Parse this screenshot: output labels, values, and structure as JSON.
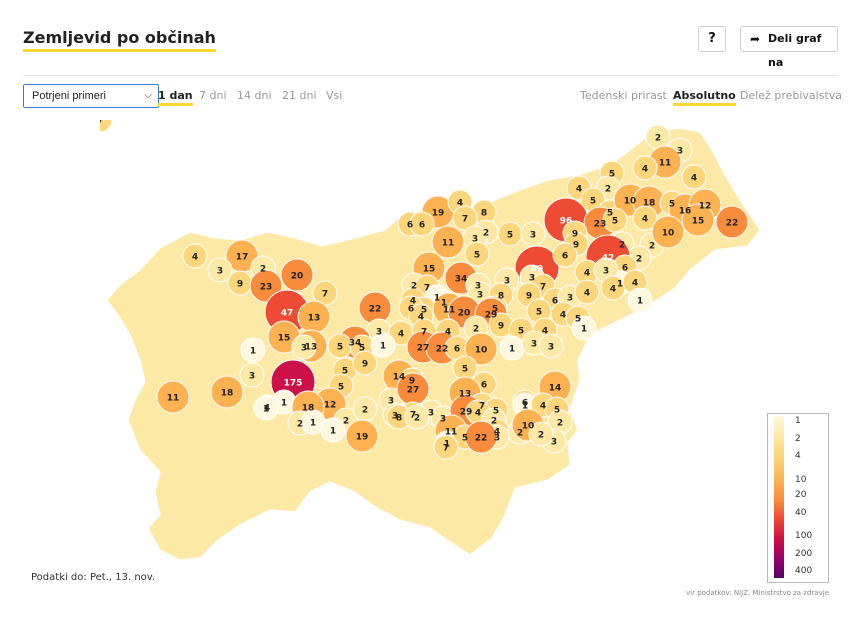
{
  "header": {
    "title": "Zemljevid po občinah",
    "help_label": "?",
    "share_label": "Deli graf na"
  },
  "controls": {
    "metric_select": {
      "selected": "Potrjeni primeri"
    },
    "ranges": [
      {
        "label": "1 dan",
        "active": true
      },
      {
        "label": "7 dni",
        "active": false
      },
      {
        "label": "14 dni",
        "active": false
      },
      {
        "label": "21 dni",
        "active": false
      },
      {
        "label": "Vsi",
        "active": false
      }
    ],
    "modes": [
      {
        "label": "Tedenski prirast",
        "active": false
      },
      {
        "label": "Absolutno",
        "active": true
      },
      {
        "label": "Delež prebivalstva",
        "active": false
      }
    ]
  },
  "map": {
    "municipality_values": [
      {
        "v": "2"
      },
      {
        "v": "3"
      },
      {
        "v": "11"
      },
      {
        "v": "4"
      },
      {
        "v": "4"
      },
      {
        "v": "5"
      },
      {
        "v": "4"
      },
      {
        "v": "2"
      },
      {
        "v": "5"
      },
      {
        "v": "5"
      },
      {
        "v": "10"
      },
      {
        "v": "18"
      },
      {
        "v": "5"
      },
      {
        "v": "96"
      },
      {
        "v": "23"
      },
      {
        "v": "5"
      },
      {
        "v": "4"
      },
      {
        "v": "16"
      },
      {
        "v": "12"
      },
      {
        "v": "15"
      },
      {
        "v": "22"
      },
      {
        "v": "19"
      },
      {
        "v": "4"
      },
      {
        "v": "8"
      },
      {
        "v": "6"
      },
      {
        "v": "6"
      },
      {
        "v": "7"
      },
      {
        "v": "2"
      },
      {
        "v": "3"
      },
      {
        "v": "5"
      },
      {
        "v": "3"
      },
      {
        "v": "9"
      },
      {
        "v": "2"
      },
      {
        "v": "10"
      },
      {
        "v": "11"
      },
      {
        "v": "2"
      },
      {
        "v": "2"
      },
      {
        "v": "9"
      },
      {
        "v": "4"
      },
      {
        "v": "17"
      },
      {
        "v": "2"
      },
      {
        "v": "20"
      },
      {
        "v": "3"
      },
      {
        "v": "9"
      },
      {
        "v": "23"
      },
      {
        "v": "5"
      },
      {
        "v": "49"
      },
      {
        "v": "6"
      },
      {
        "v": "42"
      },
      {
        "v": "6"
      },
      {
        "v": "1"
      },
      {
        "v": "15"
      },
      {
        "v": "34"
      },
      {
        "v": "3"
      },
      {
        "v": "3"
      },
      {
        "v": "2"
      },
      {
        "v": "7"
      },
      {
        "v": "1"
      },
      {
        "v": "4"
      },
      {
        "v": "1"
      },
      {
        "v": "3"
      },
      {
        "v": "4"
      },
      {
        "v": "3"
      },
      {
        "v": "7"
      },
      {
        "v": "9"
      },
      {
        "v": "6"
      },
      {
        "v": "3"
      },
      {
        "v": "4"
      },
      {
        "v": "4"
      },
      {
        "v": "4"
      },
      {
        "v": "1"
      },
      {
        "v": "3"
      },
      {
        "v": "8"
      },
      {
        "v": "7"
      },
      {
        "v": "5"
      },
      {
        "v": "11"
      },
      {
        "v": "5"
      },
      {
        "v": "47"
      },
      {
        "v": "13"
      },
      {
        "v": "22"
      },
      {
        "v": "6"
      },
      {
        "v": "4"
      },
      {
        "v": "20"
      },
      {
        "v": "29"
      },
      {
        "v": "5"
      },
      {
        "v": "4"
      },
      {
        "v": "5"
      },
      {
        "v": "1"
      },
      {
        "v": "3"
      },
      {
        "v": "4"
      },
      {
        "v": "7"
      },
      {
        "v": "4"
      },
      {
        "v": "2"
      },
      {
        "v": "9"
      },
      {
        "v": "5"
      },
      {
        "v": "4"
      },
      {
        "v": "15"
      },
      {
        "v": "34"
      },
      {
        "v": "27"
      },
      {
        "v": "22"
      },
      {
        "v": "6"
      },
      {
        "v": "10"
      },
      {
        "v": "1"
      },
      {
        "v": "3"
      },
      {
        "v": "3"
      },
      {
        "v": "13"
      },
      {
        "v": "5"
      },
      {
        "v": "5"
      },
      {
        "v": "1"
      },
      {
        "v": "1"
      },
      {
        "v": "3"
      },
      {
        "v": "3"
      },
      {
        "v": "175"
      },
      {
        "v": "5"
      },
      {
        "v": "9"
      },
      {
        "v": "5"
      },
      {
        "v": "14"
      },
      {
        "v": "9"
      },
      {
        "v": "3"
      },
      {
        "v": "27"
      },
      {
        "v": "5"
      },
      {
        "v": "6"
      },
      {
        "v": "13"
      },
      {
        "v": "7"
      },
      {
        "v": "5"
      },
      {
        "v": "6"
      },
      {
        "v": "14"
      },
      {
        "v": "11"
      },
      {
        "v": "18"
      },
      {
        "v": "4"
      },
      {
        "v": "1"
      },
      {
        "v": "12"
      },
      {
        "v": "18"
      },
      {
        "v": "1"
      },
      {
        "v": "2"
      },
      {
        "v": "1"
      },
      {
        "v": "2"
      },
      {
        "v": "2"
      },
      {
        "v": "3"
      },
      {
        "v": "7"
      },
      {
        "v": "3"
      },
      {
        "v": "1"
      },
      {
        "v": "19"
      },
      {
        "v": "8"
      },
      {
        "v": "2"
      },
      {
        "v": "3"
      },
      {
        "v": "29"
      },
      {
        "v": "4"
      },
      {
        "v": "2"
      },
      {
        "v": "1"
      },
      {
        "v": "4"
      },
      {
        "v": "5"
      },
      {
        "v": "2"
      },
      {
        "v": "4"
      },
      {
        "v": "3"
      },
      {
        "v": "2"
      },
      {
        "v": "10"
      },
      {
        "v": "2"
      },
      {
        "v": "3"
      },
      {
        "v": "11"
      },
      {
        "v": "1"
      },
      {
        "v": "5"
      },
      {
        "v": "22"
      },
      {
        "v": "7"
      },
      {
        "v": "7"
      }
    ]
  },
  "legend": {
    "ticks": [
      "1",
      "2",
      "4",
      "10",
      "20",
      "40",
      "100",
      "200",
      "400"
    ],
    "colors": [
      "#fff8e1",
      "#fde9a6",
      "#fdd57b",
      "#fdb151",
      "#f98b3c",
      "#ee4b34",
      "#cc1048",
      "#990066",
      "#5a0068"
    ]
  },
  "footer": {
    "data_date": "Podatki do: Pet., 13. nov.",
    "attribution": "vir podatkov: NIJZ, Ministrstvo za zdravje"
  }
}
